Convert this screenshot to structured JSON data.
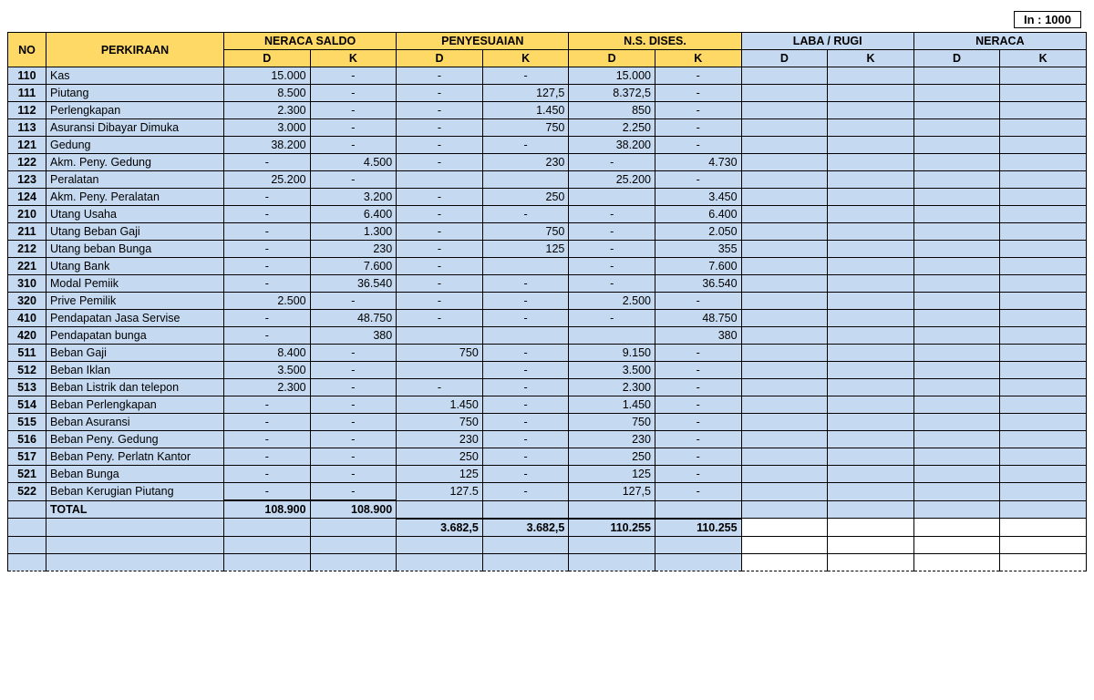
{
  "caption": {
    "label": "In :",
    "value": "1000"
  },
  "header": {
    "no": "NO",
    "perkiraan": "PERKIRAAN",
    "groups": [
      "NERACA SALDO",
      "PENYESUAIAN",
      "N.S. DISES.",
      "LABA / RUGI",
      "NERACA"
    ],
    "d": "D",
    "k": "K"
  },
  "colors": {
    "header_yellow": "#ffd966",
    "header_blue": "#c5d9f1",
    "body_blue": "#c5d9f1",
    "grid": "#000000"
  },
  "columns": 12,
  "rows": [
    {
      "no": "110",
      "perk": "Kas",
      "c": [
        "15.000",
        "-",
        "-",
        "-",
        "15.000",
        "-",
        "",
        "",
        "",
        ""
      ]
    },
    {
      "no": "111",
      "perk": "Piutang",
      "c": [
        "8.500",
        "-",
        "-",
        "127,5",
        "8.372,5",
        "-",
        "",
        "",
        "",
        ""
      ]
    },
    {
      "no": "112",
      "perk": "Perlengkapan",
      "c": [
        "2.300",
        "-",
        "-",
        "1.450",
        "850",
        "-",
        "",
        "",
        "",
        ""
      ]
    },
    {
      "no": "113",
      "perk": "Asuransi Dibayar Dimuka",
      "c": [
        "3.000",
        "-",
        "-",
        "750",
        "2.250",
        "-",
        "",
        "",
        "",
        ""
      ]
    },
    {
      "no": "121",
      "perk": "Gedung",
      "c": [
        "38.200",
        "-",
        "-",
        "-",
        "38.200",
        "-",
        "",
        "",
        "",
        ""
      ]
    },
    {
      "no": "122",
      "perk": "Akm. Peny. Gedung",
      "c": [
        "-",
        "4.500",
        "-",
        "230",
        "-",
        "4.730",
        "",
        "",
        "",
        ""
      ]
    },
    {
      "no": "123",
      "perk": "Peralatan",
      "c": [
        "25.200",
        "-",
        "",
        "",
        "25.200",
        "-",
        "",
        "",
        "",
        ""
      ]
    },
    {
      "no": "124",
      "perk": "Akm. Peny. Peralatan",
      "c": [
        "-",
        "3.200",
        "-",
        "250",
        "",
        "3.450",
        "",
        "",
        "",
        ""
      ]
    },
    {
      "no": "210",
      "perk": "Utang Usaha",
      "c": [
        "-",
        "6.400",
        "-",
        "-",
        "-",
        "6.400",
        "",
        "",
        "",
        ""
      ]
    },
    {
      "no": "211",
      "perk": "Utang Beban Gaji",
      "c": [
        "-",
        "1.300",
        "-",
        "750",
        "-",
        "2.050",
        "",
        "",
        "",
        ""
      ]
    },
    {
      "no": "212",
      "perk": "Utang beban Bunga",
      "c": [
        "-",
        "230",
        "-",
        "125",
        "-",
        "355",
        "",
        "",
        "",
        ""
      ]
    },
    {
      "no": "221",
      "perk": "Utang Bank",
      "c": [
        "-",
        "7.600",
        "-",
        "",
        "-",
        "7.600",
        "",
        "",
        "",
        ""
      ]
    },
    {
      "no": "310",
      "perk": "Modal Pemiik",
      "c": [
        "-",
        "36.540",
        "-",
        "-",
        "-",
        "36.540",
        "",
        "",
        "",
        ""
      ]
    },
    {
      "no": "320",
      "perk": "Prive Pemilik",
      "c": [
        "2.500",
        "-",
        "-",
        "-",
        "2.500",
        "-",
        "",
        "",
        "",
        ""
      ]
    },
    {
      "no": "410",
      "perk": "Pendapatan Jasa Servise",
      "c": [
        "-",
        "48.750",
        "-",
        "-",
        "-",
        "48.750",
        "",
        "",
        "",
        ""
      ]
    },
    {
      "no": "420",
      "perk": "Pendapatan bunga",
      "c": [
        "-",
        "380",
        "",
        "",
        "",
        "380",
        "",
        "",
        "",
        ""
      ]
    },
    {
      "no": "511",
      "perk": "Beban Gaji",
      "c": [
        "8.400",
        "-",
        "750",
        "-",
        "9.150",
        "-",
        "",
        "",
        "",
        ""
      ]
    },
    {
      "no": "512",
      "perk": "Beban Iklan",
      "c": [
        "3.500",
        "-",
        "",
        "-",
        "3.500",
        "-",
        "",
        "",
        "",
        ""
      ]
    },
    {
      "no": "513",
      "perk": "Beban Listrik dan telepon",
      "c": [
        "2.300",
        "-",
        "-",
        "-",
        "2.300",
        "-",
        "",
        "",
        "",
        ""
      ]
    },
    {
      "no": "514",
      "perk": "Beban Perlengkapan",
      "c": [
        "-",
        "-",
        "1.450",
        "-",
        "1.450",
        "-",
        "",
        "",
        "",
        ""
      ]
    },
    {
      "no": "515",
      "perk": "Beban Asuransi",
      "c": [
        "-",
        "-",
        "750",
        "-",
        "750",
        "-",
        "",
        "",
        "",
        ""
      ]
    },
    {
      "no": "516",
      "perk": "Beban Peny. Gedung",
      "c": [
        "-",
        "-",
        "230",
        "-",
        "230",
        "-",
        "",
        "",
        "",
        ""
      ]
    },
    {
      "no": "517",
      "perk": "Beban Peny. Perlatn Kantor",
      "c": [
        "-",
        "-",
        "250",
        "-",
        "250",
        "-",
        "",
        "",
        "",
        ""
      ]
    },
    {
      "no": "521",
      "perk": "Beban Bunga",
      "c": [
        "-",
        "-",
        "125",
        "-",
        "125",
        "-",
        "",
        "",
        "",
        ""
      ]
    },
    {
      "no": "522",
      "perk": "Beban Kerugian Piutang",
      "c": [
        "-",
        "-",
        "127.5",
        "-",
        "127,5",
        "-",
        "",
        "",
        "",
        ""
      ]
    }
  ],
  "totals1": {
    "label": "TOTAL",
    "c": [
      "108.900",
      "108.900",
      "",
      "",
      "",
      "",
      "",
      "",
      "",
      ""
    ]
  },
  "totals2": {
    "c": [
      "",
      "",
      "3.682,5",
      "3.682,5",
      "110.255",
      "110.255",
      "",
      "",
      "",
      ""
    ]
  },
  "blank_rows": 2
}
